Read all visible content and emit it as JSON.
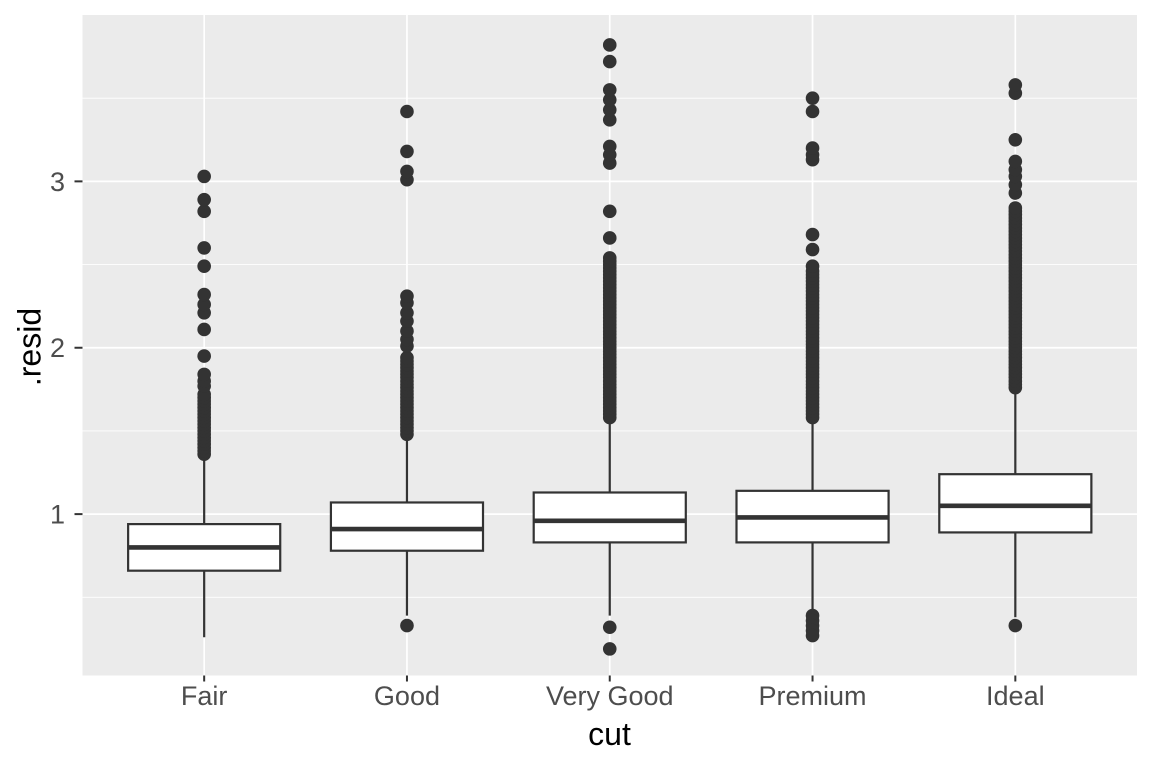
{
  "chart_data": {
    "type": "boxplot",
    "title": "",
    "xlabel": "cut",
    "ylabel": ".resid",
    "categories": [
      "Fair",
      "Good",
      "Very Good",
      "Premium",
      "Ideal"
    ],
    "ylim": [
      0.03,
      4.0
    ],
    "y_major_ticks": [
      1,
      2,
      3
    ],
    "y_tick_labels": [
      "1",
      "2",
      "3"
    ],
    "y_minor_gridlines": [
      0.5,
      1.5,
      2.5,
      3.5
    ],
    "grid": "white major and minor horizontal gridlines plus one white vertical gridline per category, on grey panel",
    "legend_position": "none",
    "box_width_fraction": 0.75,
    "series": [
      {
        "name": "Fair",
        "whisker_low": 0.26,
        "q1": 0.66,
        "median": 0.8,
        "q3": 0.94,
        "whisker_high": 1.35,
        "outliers_low": [],
        "outliers_high": [
          {
            "range": [
              1.36,
              1.72
            ],
            "step": 0.02
          },
          1.77,
          1.8,
          1.84,
          1.95,
          2.11,
          2.21,
          2.26,
          2.32,
          2.49,
          2.6,
          2.82,
          2.89,
          3.03
        ]
      },
      {
        "name": "Good",
        "whisker_low": 0.39,
        "q1": 0.78,
        "median": 0.91,
        "q3": 1.07,
        "whisker_high": 1.48,
        "outliers_low": [
          0.33
        ],
        "outliers_high": [
          {
            "range": [
              1.48,
              1.94
            ],
            "step": 0.02
          },
          2.01,
          2.05,
          2.1,
          2.16,
          2.21,
          2.27,
          2.31,
          3.01,
          3.06,
          3.18,
          3.42
        ]
      },
      {
        "name": "Very Good",
        "whisker_low": 0.39,
        "q1": 0.83,
        "median": 0.96,
        "q3": 1.13,
        "whisker_high": 1.58,
        "outliers_low": [
          0.32,
          0.19
        ],
        "outliers_high": [
          {
            "range": [
              1.58,
              2.54
            ],
            "step": 0.02
          },
          2.66,
          2.82,
          3.11,
          3.16,
          3.21,
          3.37,
          3.43,
          3.49,
          3.55,
          3.72,
          3.82
        ]
      },
      {
        "name": "Premium",
        "whisker_low": 0.41,
        "q1": 0.83,
        "median": 0.98,
        "q3": 1.14,
        "whisker_high": 1.58,
        "outliers_low": [
          0.39,
          0.36,
          0.33,
          0.3,
          0.27
        ],
        "outliers_high": [
          {
            "range": [
              1.58,
              2.46
            ],
            "step": 0.02
          },
          2.49,
          2.59,
          2.68,
          3.13,
          3.16,
          3.2,
          3.42,
          3.5
        ]
      },
      {
        "name": "Ideal",
        "whisker_low": 0.38,
        "q1": 0.89,
        "median": 1.05,
        "q3": 1.24,
        "whisker_high": 1.75,
        "outliers_low": [
          0.33
        ],
        "outliers_high": [
          {
            "range": [
              1.76,
              2.84
            ],
            "step": 0.02
          },
          2.93,
          2.98,
          3.03,
          3.07,
          3.12,
          3.25,
          3.53,
          3.58
        ]
      }
    ],
    "colors": {
      "page_bg": "#FFFFFF",
      "panel_bg": "#EBEBEB",
      "gridline": "#FFFFFF",
      "box_stroke": "#333333",
      "box_fill": "#FFFFFF",
      "outlier_dot": "#333333",
      "tick_mark": "#333333",
      "tick_label_text": "#4D4D4D",
      "axis_title_text": "#000000"
    }
  }
}
